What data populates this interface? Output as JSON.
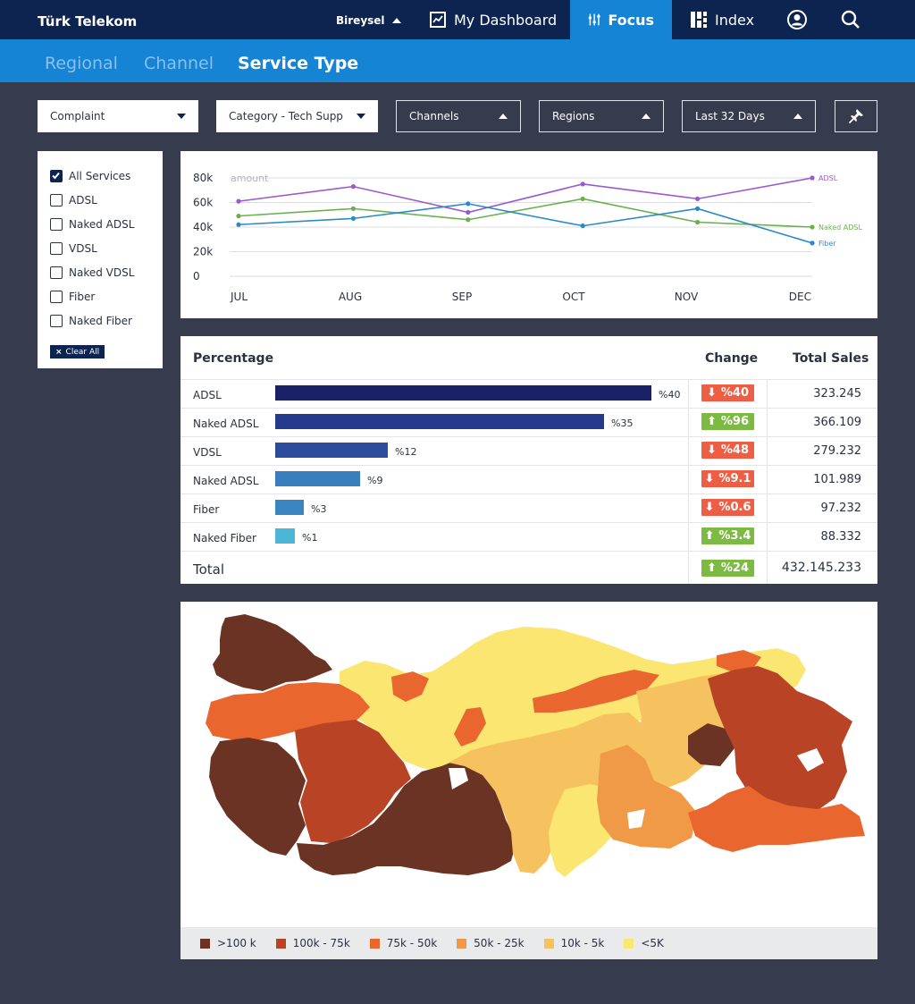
{
  "header": {
    "brand": "Türk Telekom",
    "segment": "Bireysel",
    "nav": {
      "dashboard": "My Dashboard",
      "focus": "Focus",
      "index": "Index"
    }
  },
  "subnav": {
    "tabs": [
      "Regional",
      "Channel",
      "Service Type"
    ],
    "active": "Service Type"
  },
  "filters": {
    "complaint": "Complaint",
    "category": "Category - Tech Supp",
    "channels": "Channels",
    "regions": "Regions",
    "period": "Last 32 Days"
  },
  "services": {
    "items": [
      {
        "label": "All Services",
        "checked": true
      },
      {
        "label": "ADSL",
        "checked": false
      },
      {
        "label": "Naked ADSL",
        "checked": false
      },
      {
        "label": "VDSL",
        "checked": false
      },
      {
        "label": "Naked VDSL",
        "checked": false
      },
      {
        "label": "Fiber",
        "checked": false
      },
      {
        "label": "Naked Fiber",
        "checked": false
      }
    ],
    "clear_label": "Clear All"
  },
  "chart_data": {
    "type": "line",
    "categories": [
      "JUL",
      "AUG",
      "SEP",
      "OCT",
      "NOV",
      "DEC"
    ],
    "ylabel": "amount",
    "yticks": [
      "0",
      "20k",
      "40k",
      "60k",
      "80k"
    ],
    "ylim": [
      0,
      80000
    ],
    "series": [
      {
        "name": "ADSL",
        "color": "#9b59d0",
        "values": [
          61000,
          73000,
          52000,
          75000,
          63000,
          80000
        ]
      },
      {
        "name": "Naked ADSL",
        "color": "#6ab04c",
        "values": [
          49000,
          55000,
          46000,
          63000,
          44000,
          40000
        ]
      },
      {
        "name": "Fiber",
        "color": "#2a8ac9",
        "values": [
          42000,
          47000,
          59000,
          41000,
          55000,
          27000
        ]
      }
    ]
  },
  "table": {
    "headers": {
      "percentage": "Percentage",
      "change": "Change",
      "total": "Total Sales"
    },
    "rows": [
      {
        "name": "ADSL",
        "pct": "%40",
        "share": 40,
        "color": "#1a2166",
        "change": "%40",
        "dir": "down",
        "sales": "323.245"
      },
      {
        "name": "Naked ADSL",
        "pct": "%35",
        "share": 35,
        "color": "#253a8c",
        "change": "%96",
        "dir": "up",
        "sales": "366.109"
      },
      {
        "name": "VDSL",
        "pct": "%12",
        "share": 12,
        "color": "#2c4b9a",
        "change": "%48",
        "dir": "down",
        "sales": "279.232"
      },
      {
        "name": "Naked ADSL",
        "pct": "%9",
        "share": 9,
        "color": "#3a7fbd",
        "change": "%9.1",
        "dir": "down",
        "sales": "101.989"
      },
      {
        "name": "Fiber",
        "pct": "%3",
        "share": 3,
        "color": "#3a86c0",
        "change": "%0.6",
        "dir": "down",
        "sales": "97.232"
      },
      {
        "name": "Naked Fiber",
        "pct": "%1",
        "share": 1,
        "color": "#4db5d6",
        "change": "%3.4",
        "dir": "up",
        "sales": "88.332"
      }
    ],
    "total": {
      "label": "Total",
      "change": "%24",
      "dir": "up",
      "sales": "432.145.233"
    }
  },
  "map": {
    "legend": [
      {
        "label": ">100 k",
        "color": "#6b3324"
      },
      {
        "label": "100k - 75k",
        "color": "#b84425"
      },
      {
        "label": "75k - 50k",
        "color": "#e9672f"
      },
      {
        "label": "50k - 25k",
        "color": "#f09a48"
      },
      {
        "label": "10k - 5k",
        "color": "#f6c260"
      },
      {
        "label": "<5K",
        "color": "#fbe672"
      }
    ]
  }
}
